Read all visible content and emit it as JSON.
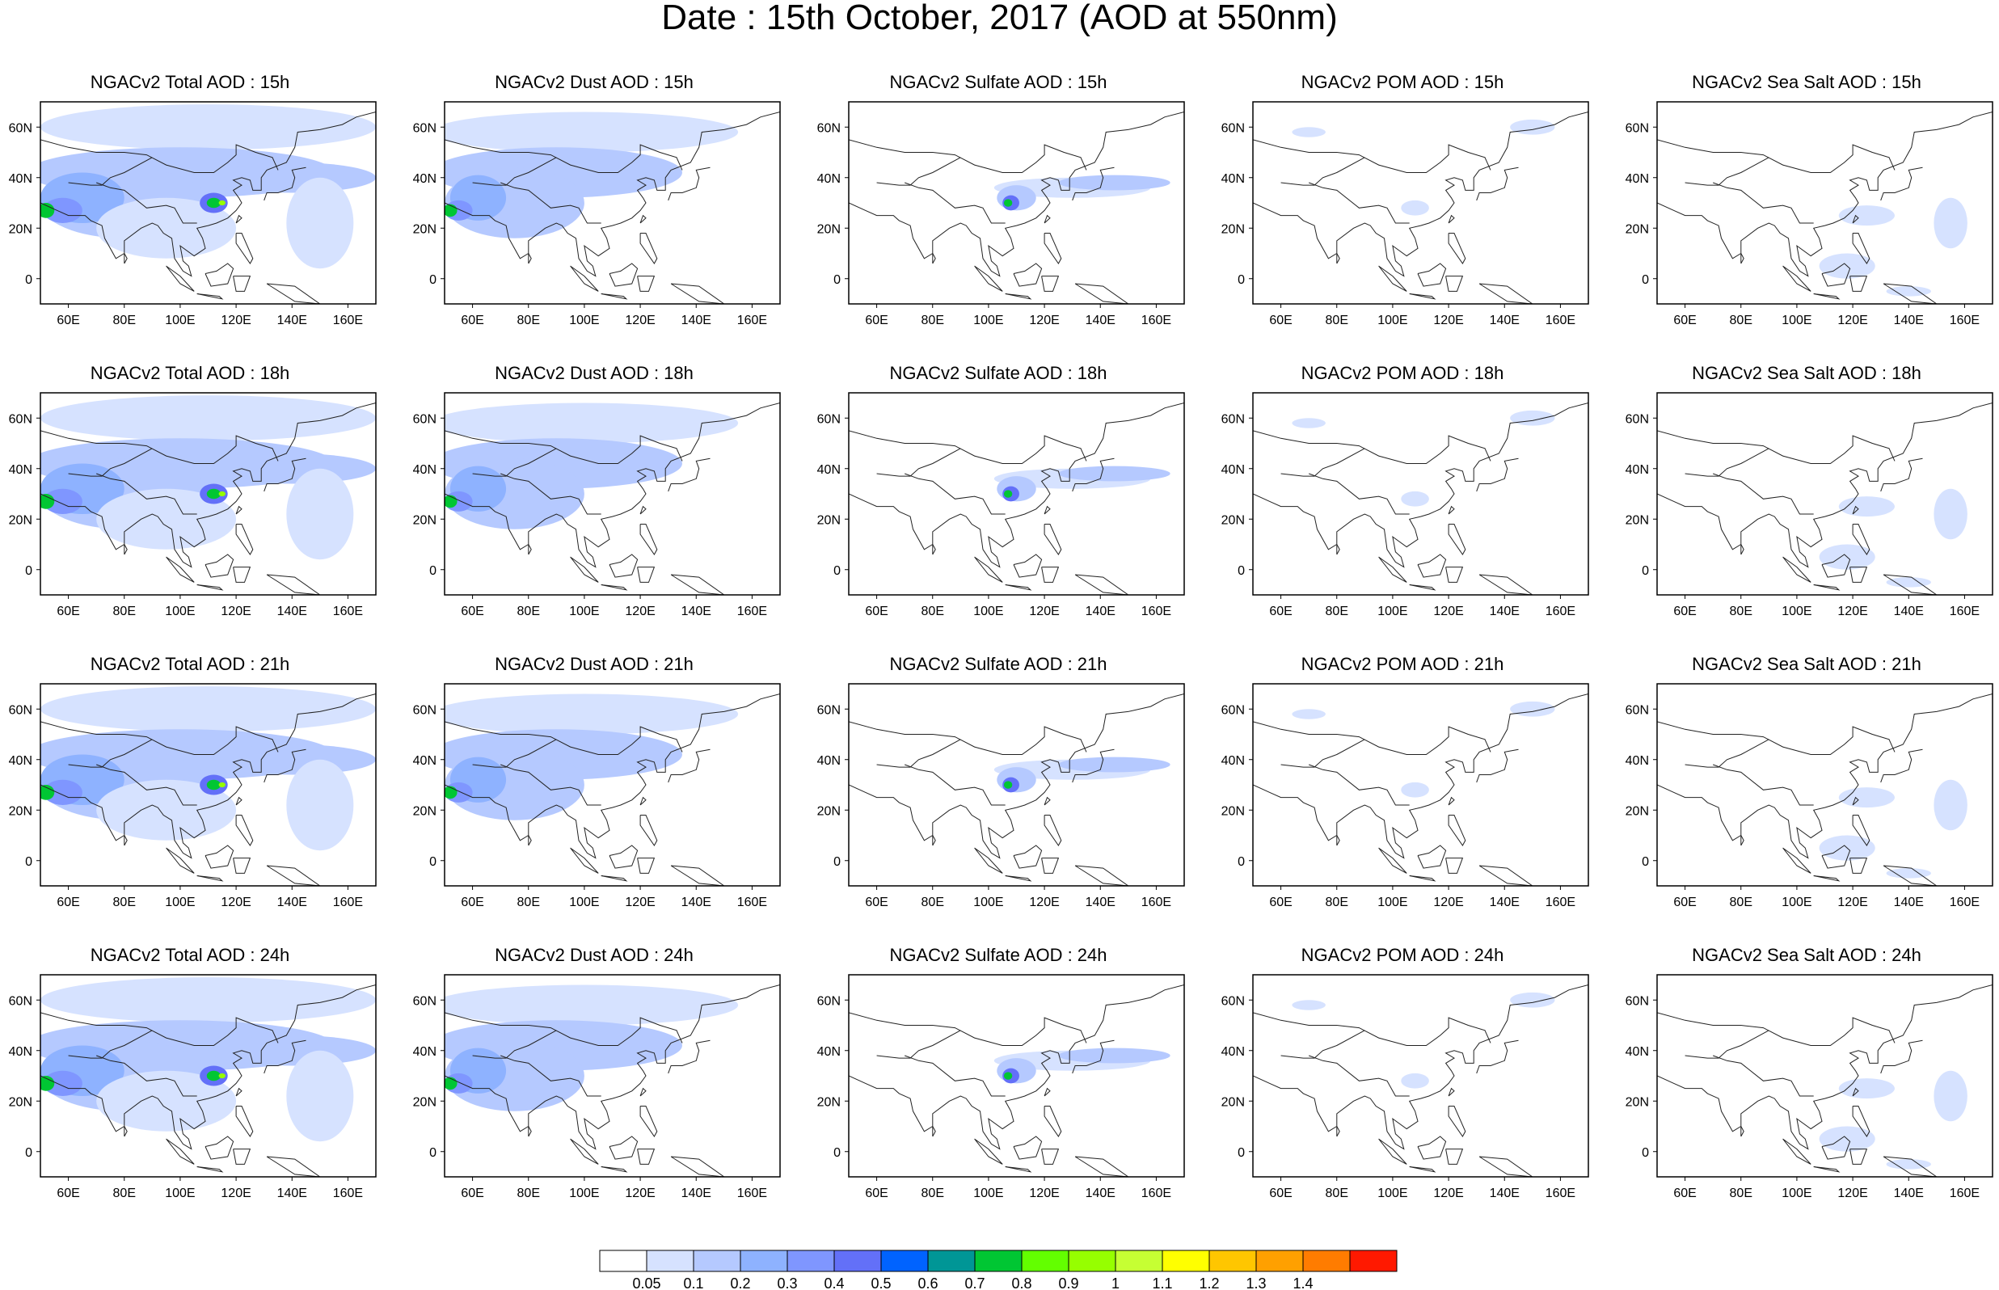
{
  "title": "Date : 15th October, 2017 (AOD at 550nm)",
  "lat_ticks": [
    "60N",
    "40N",
    "20N",
    "0"
  ],
  "lon_ticks": [
    "60E",
    "80E",
    "100E",
    "120E",
    "140E",
    "160E"
  ],
  "map_extent": {
    "lon": [
      50,
      170
    ],
    "lat": [
      -10,
      70
    ]
  },
  "panels": [
    {
      "title": "NGACv2 Total AOD : 15h",
      "species": "total"
    },
    {
      "title": "NGACv2 Dust AOD : 15h",
      "species": "dust"
    },
    {
      "title": "NGACv2 Sulfate AOD : 15h",
      "species": "sulfate"
    },
    {
      "title": "NGACv2 POM AOD : 15h",
      "species": "pom"
    },
    {
      "title": "NGACv2 Sea Salt AOD : 15h",
      "species": "seasalt"
    },
    {
      "title": "NGACv2 Total AOD : 18h",
      "species": "total"
    },
    {
      "title": "NGACv2 Dust AOD : 18h",
      "species": "dust"
    },
    {
      "title": "NGACv2 Sulfate AOD : 18h",
      "species": "sulfate"
    },
    {
      "title": "NGACv2 POM AOD : 18h",
      "species": "pom"
    },
    {
      "title": "NGACv2 Sea Salt AOD : 18h",
      "species": "seasalt"
    },
    {
      "title": "NGACv2 Total AOD : 21h",
      "species": "total"
    },
    {
      "title": "NGACv2 Dust AOD : 21h",
      "species": "dust"
    },
    {
      "title": "NGACv2 Sulfate AOD : 21h",
      "species": "sulfate"
    },
    {
      "title": "NGACv2 POM AOD : 21h",
      "species": "pom"
    },
    {
      "title": "NGACv2 Sea Salt AOD : 21h",
      "species": "seasalt"
    },
    {
      "title": "NGACv2 Total AOD : 24h",
      "species": "total"
    },
    {
      "title": "NGACv2 Dust AOD : 24h",
      "species": "dust"
    },
    {
      "title": "NGACv2 Sulfate AOD : 24h",
      "species": "sulfate"
    },
    {
      "title": "NGACv2 POM AOD : 24h",
      "species": "pom"
    },
    {
      "title": "NGACv2 Sea Salt  AOD : 24h",
      "species": "seasalt"
    }
  ],
  "colorbar": {
    "labels": [
      "0.05",
      "0.1",
      "0.2",
      "0.3",
      "0.4",
      "0.5",
      "0.6",
      "0.7",
      "0.8",
      "0.9",
      "1",
      "1.1",
      "1.2",
      "1.3",
      "1.4"
    ],
    "colors": [
      "#ffffff",
      "#d6e2ff",
      "#b5c9ff",
      "#8eb2ff",
      "#7f96ff",
      "#6370f8",
      "#0063ff",
      "#009696",
      "#00c633",
      "#63ff00",
      "#96ff00",
      "#c6ff33",
      "#ffff00",
      "#ffc600",
      "#ffa000",
      "#ff7c00",
      "#ff1900"
    ]
  }
}
